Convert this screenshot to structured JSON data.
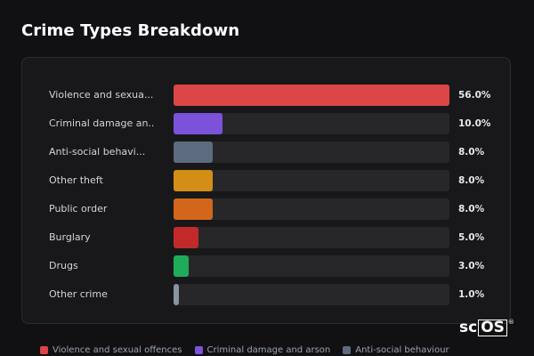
{
  "page": {
    "title": "Crime Types Breakdown"
  },
  "brand": {
    "logo_left": "sc",
    "logo_boxed": "OS",
    "logo_mark": "®"
  },
  "chart_data": {
    "type": "bar",
    "orientation": "horizontal",
    "title": "Crime Types Breakdown",
    "unit": "%",
    "xlim": [
      0,
      56
    ],
    "categories": [
      "Violence and sexual offences",
      "Criminal damage and arson",
      "Anti-social behaviour",
      "Other theft",
      "Public order",
      "Burglary",
      "Drugs",
      "Other crime"
    ],
    "display_labels": [
      "Violence and sexua...",
      "Criminal damage an...",
      "Anti-social behavi...",
      "Other theft",
      "Public order",
      "Burglary",
      "Drugs",
      "Other crime"
    ],
    "values": [
      56.0,
      10.0,
      8.0,
      8.0,
      8.0,
      5.0,
      3.0,
      1.0
    ],
    "value_labels": [
      "56.0%",
      "10.0%",
      "8.0%",
      "8.0%",
      "8.0%",
      "5.0%",
      "3.0%",
      "1.0%"
    ],
    "colors": [
      "#dc4545",
      "#7b52d9",
      "#5d6b7f",
      "#d38f15",
      "#d2671b",
      "#c22a2a",
      "#1fab5a",
      "#8b93a1"
    ],
    "legend": {
      "position": "bottom",
      "entries": [
        {
          "label": "Violence and sexual offences",
          "color": "#dc4545"
        },
        {
          "label": "Criminal damage and arson",
          "color": "#7b52d9"
        },
        {
          "label": "Anti-social behaviour",
          "color": "#5d6b7f"
        }
      ]
    }
  }
}
